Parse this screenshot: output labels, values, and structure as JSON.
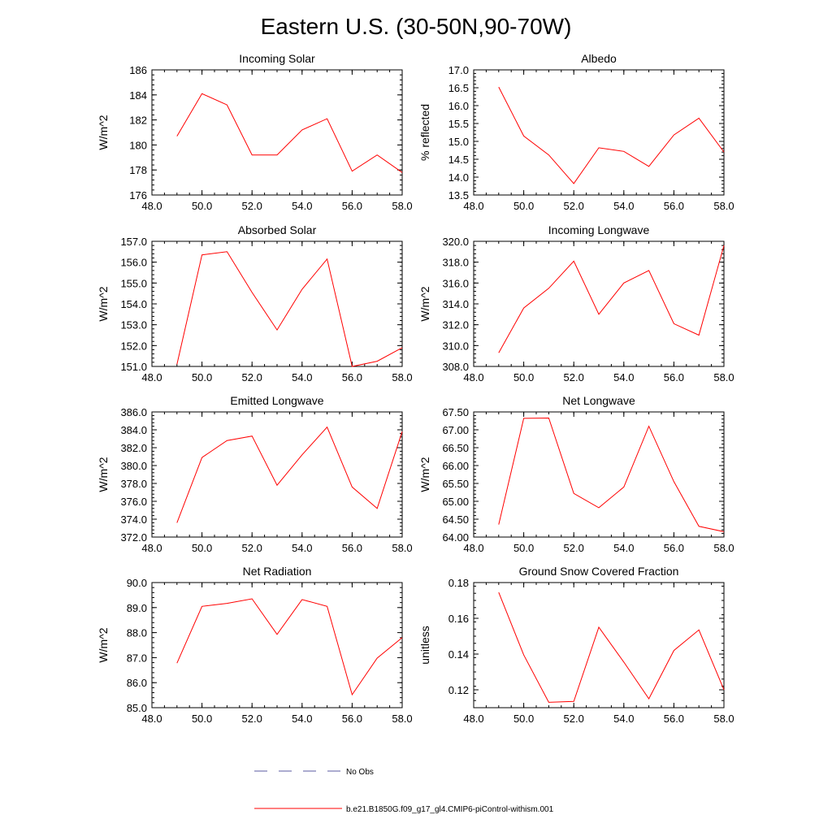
{
  "title": "Eastern U.S. (30-50N,90-70W)",
  "chart_data": [
    {
      "type": "line",
      "title": "Incoming Solar",
      "ylabel": "W/m^2",
      "xlim": [
        48,
        58
      ],
      "ylim": [
        176,
        186
      ],
      "xticks": [
        "48.0",
        "50.0",
        "52.0",
        "54.0",
        "56.0",
        "58.0"
      ],
      "yticks": [
        "176",
        "178",
        "180",
        "182",
        "184",
        "186"
      ],
      "series": [
        {
          "name": "b.e21.B1850G.f09_g17_gl4.CMIP6-piControl-withism.001",
          "x": [
            49,
            50,
            51,
            52,
            53,
            54,
            55,
            56,
            57,
            58
          ],
          "y": [
            180.7,
            184.1,
            183.2,
            179.2,
            179.2,
            181.2,
            182.1,
            177.9,
            179.2,
            177.8
          ]
        }
      ]
    },
    {
      "type": "line",
      "title": "Albedo",
      "ylabel": "% reflected",
      "xlim": [
        48,
        58
      ],
      "ylim": [
        13.5,
        17.0
      ],
      "xticks": [
        "48.0",
        "50.0",
        "52.0",
        "54.0",
        "56.0",
        "58.0"
      ],
      "yticks": [
        "13.5",
        "14.0",
        "14.5",
        "15.0",
        "15.5",
        "16.0",
        "16.5",
        "17.0"
      ],
      "series": [
        {
          "name": "b.e21.B1850G.f09_g17_gl4.CMIP6-piControl-withism.001",
          "x": [
            49,
            50,
            51,
            52,
            53,
            54,
            55,
            56,
            57,
            58
          ],
          "y": [
            16.52,
            15.15,
            14.62,
            13.82,
            14.82,
            14.72,
            14.3,
            15.18,
            15.65,
            14.7
          ]
        }
      ]
    },
    {
      "type": "line",
      "title": "Absorbed Solar",
      "ylabel": "W/m^2",
      "xlim": [
        48,
        58
      ],
      "ylim": [
        151,
        157
      ],
      "xticks": [
        "48.0",
        "50.0",
        "52.0",
        "54.0",
        "56.0",
        "58.0"
      ],
      "yticks": [
        "151.0",
        "152.0",
        "153.0",
        "154.0",
        "155.0",
        "156.0",
        "157.0"
      ],
      "series": [
        {
          "name": "b.e21.B1850G.f09_g17_gl4.CMIP6-piControl-withism.001",
          "x": [
            49,
            50,
            51,
            52,
            53,
            54,
            55,
            56,
            57,
            58
          ],
          "y": [
            151.1,
            156.35,
            156.5,
            154.55,
            152.75,
            154.7,
            156.15,
            151.0,
            151.25,
            151.9
          ]
        }
      ]
    },
    {
      "type": "line",
      "title": "Incoming Longwave",
      "ylabel": "W/m^2",
      "xlim": [
        48,
        58
      ],
      "ylim": [
        308,
        320
      ],
      "xticks": [
        "48.0",
        "50.0",
        "52.0",
        "54.0",
        "56.0",
        "58.0"
      ],
      "yticks": [
        "308.0",
        "310.0",
        "312.0",
        "314.0",
        "316.0",
        "318.0",
        "320.0"
      ],
      "series": [
        {
          "name": "b.e21.B1850G.f09_g17_gl4.CMIP6-piControl-withism.001",
          "x": [
            49,
            50,
            51,
            52,
            53,
            54,
            55,
            56,
            57,
            58
          ],
          "y": [
            309.3,
            313.6,
            315.5,
            318.1,
            313.0,
            316.0,
            317.2,
            312.1,
            311.0,
            319.6
          ]
        }
      ]
    },
    {
      "type": "line",
      "title": "Emitted Longwave",
      "ylabel": "W/m^2",
      "xlim": [
        48,
        58
      ],
      "ylim": [
        372,
        386
      ],
      "xticks": [
        "48.0",
        "50.0",
        "52.0",
        "54.0",
        "56.0",
        "58.0"
      ],
      "yticks": [
        "372.0",
        "374.0",
        "376.0",
        "378.0",
        "380.0",
        "382.0",
        "384.0",
        "386.0"
      ],
      "series": [
        {
          "name": "b.e21.B1850G.f09_g17_gl4.CMIP6-piControl-withism.001",
          "x": [
            49,
            50,
            51,
            52,
            53,
            54,
            55,
            56,
            57,
            58
          ],
          "y": [
            373.6,
            380.9,
            382.8,
            383.3,
            377.8,
            381.2,
            384.3,
            377.6,
            375.2,
            383.8
          ]
        }
      ]
    },
    {
      "type": "line",
      "title": "Net Longwave",
      "ylabel": "W/m^2",
      "xlim": [
        48,
        58
      ],
      "ylim": [
        64.0,
        67.5
      ],
      "xticks": [
        "48.0",
        "50.0",
        "52.0",
        "54.0",
        "56.0",
        "58.0"
      ],
      "yticks": [
        "64.00",
        "64.50",
        "65.00",
        "65.50",
        "66.00",
        "66.50",
        "67.00",
        "67.50"
      ],
      "series": [
        {
          "name": "b.e21.B1850G.f09_g17_gl4.CMIP6-piControl-withism.001",
          "x": [
            49,
            50,
            51,
            52,
            53,
            54,
            55,
            56,
            57,
            58
          ],
          "y": [
            64.35,
            67.32,
            67.33,
            65.22,
            64.82,
            65.4,
            67.1,
            65.55,
            64.3,
            64.15
          ]
        }
      ]
    },
    {
      "type": "line",
      "title": "Net Radiation",
      "ylabel": "W/m^2",
      "xlim": [
        48,
        58
      ],
      "ylim": [
        85,
        90
      ],
      "xticks": [
        "48.0",
        "50.0",
        "52.0",
        "54.0",
        "56.0",
        "58.0"
      ],
      "yticks": [
        "85.0",
        "86.0",
        "87.0",
        "88.0",
        "89.0",
        "90.0"
      ],
      "series": [
        {
          "name": "b.e21.B1850G.f09_g17_gl4.CMIP6-piControl-withism.001",
          "x": [
            49,
            50,
            51,
            52,
            53,
            54,
            55,
            56,
            57,
            58
          ],
          "y": [
            86.78,
            89.05,
            89.17,
            89.35,
            87.93,
            89.32,
            89.05,
            85.52,
            86.98,
            87.8
          ]
        }
      ]
    },
    {
      "type": "line",
      "title": "Ground Snow Covered Fraction",
      "ylabel": "unitless",
      "xlim": [
        48,
        58
      ],
      "ylim": [
        0.11,
        0.18
      ],
      "xticks": [
        "48.0",
        "50.0",
        "52.0",
        "54.0",
        "56.0",
        "58.0"
      ],
      "yticks": [
        "0.12",
        "0.14",
        "0.16",
        "0.18"
      ],
      "ytick_values": [
        0.12,
        0.14,
        0.16,
        0.18
      ],
      "series": [
        {
          "name": "b.e21.B1850G.f09_g17_gl4.CMIP6-piControl-withism.001",
          "x": [
            49,
            50,
            51,
            52,
            53,
            54,
            55,
            56,
            57,
            58
          ],
          "y": [
            0.1745,
            0.1395,
            0.113,
            0.1135,
            0.155,
            0.1355,
            0.115,
            0.142,
            0.1535,
            0.12
          ]
        }
      ]
    }
  ],
  "legend": {
    "items": [
      {
        "label": "No Obs",
        "color": "#5a5aa0",
        "style": "dashed"
      },
      {
        "label": "b.e21.B1850G.f09_g17_gl4.CMIP6-piControl-withism.001",
        "color": "#ff0000",
        "style": "solid"
      }
    ]
  },
  "colors": {
    "line": "#ff0000",
    "axis": "#000000"
  }
}
